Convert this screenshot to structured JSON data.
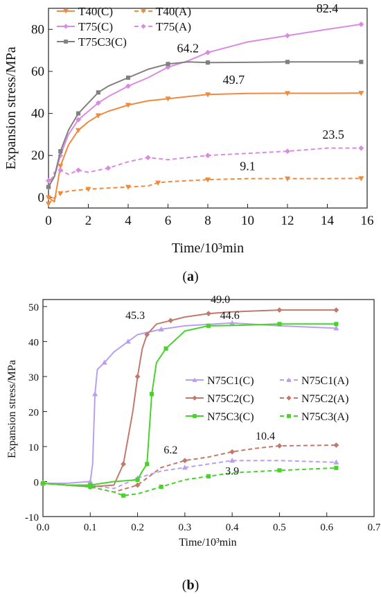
{
  "chart_data": [
    {
      "type": "line",
      "panel_label": "(a)",
      "xlabel": "Time/10³min",
      "ylabel": "Expansion stress/MPa",
      "xlim": [
        0,
        16
      ],
      "ylim": [
        -5,
        90
      ],
      "x_ticks": [
        0,
        2,
        4,
        6,
        8,
        10,
        12,
        14,
        16
      ],
      "y_ticks": [
        0,
        20,
        40,
        60,
        80
      ],
      "legend_position": "top-left",
      "series": [
        {
          "name": "T40(C)",
          "color": "#f08a3c",
          "dash": "solid",
          "marker": "triangle-down",
          "x": [
            0,
            0.3,
            0.6,
            1,
            1.5,
            2,
            2.5,
            3,
            4,
            5,
            6,
            7,
            8,
            10,
            12,
            14,
            15.7
          ],
          "y": [
            0,
            -2,
            15,
            25,
            32,
            36,
            39,
            41,
            44,
            46,
            47,
            48,
            49,
            49.5,
            49.6,
            49.6,
            49.7
          ]
        },
        {
          "name": "T40(A)",
          "color": "#f08a3c",
          "dash": "dash",
          "marker": "triangle-down",
          "x": [
            0,
            0.3,
            0.6,
            1,
            2,
            3,
            4,
            5,
            5.5,
            6,
            8,
            10,
            12,
            14,
            15.7
          ],
          "y": [
            -3,
            0,
            2,
            3,
            4,
            4.5,
            5,
            5.5,
            7,
            7.5,
            8.5,
            9,
            9,
            9,
            9.1
          ]
        },
        {
          "name": "T75(C)",
          "color": "#d98be0",
          "dash": "solid",
          "marker": "diamond",
          "x": [
            0,
            0.3,
            0.6,
            1,
            1.5,
            2,
            2.5,
            3,
            4,
            5,
            6,
            7,
            8,
            10,
            12,
            14,
            15.7
          ],
          "y": [
            8,
            10,
            20,
            30,
            37,
            41,
            45,
            48,
            53,
            57,
            62,
            65,
            69,
            74,
            77,
            80,
            82.4
          ]
        },
        {
          "name": "T75(A)",
          "color": "#d98be0",
          "dash": "dash",
          "marker": "diamond",
          "x": [
            0,
            0.3,
            0.6,
            1,
            1.5,
            2,
            3,
            4,
            5,
            6,
            8,
            10,
            12,
            14,
            15.7
          ],
          "y": [
            5,
            12,
            13,
            11,
            13,
            12,
            14,
            17,
            19,
            18,
            20,
            21,
            22,
            23.5,
            23.5
          ]
        },
        {
          "name": "T75C3(C)",
          "color": "#808080",
          "dash": "solid",
          "marker": "square",
          "x": [
            0,
            0.3,
            0.6,
            1,
            1.5,
            2,
            2.5,
            3,
            4,
            5,
            6,
            7,
            8,
            10,
            12,
            14,
            15.7
          ],
          "y": [
            5,
            10,
            22,
            32,
            40,
            45,
            50,
            53,
            57,
            61,
            63.5,
            64.5,
            64.2,
            64.3,
            64.5,
            64.5,
            64.5
          ]
        }
      ],
      "annotations": [
        {
          "text": "82.4",
          "x": 14.0,
          "y": 88
        },
        {
          "text": "64.2",
          "x": 7.0,
          "y": 69
        },
        {
          "text": "49.7",
          "x": 9.3,
          "y": 54
        },
        {
          "text": "23.5",
          "x": 14.3,
          "y": 28
        },
        {
          "text": "9.1",
          "x": 10.0,
          "y": 13
        }
      ]
    },
    {
      "type": "line",
      "panel_label": "(b)",
      "xlabel": "Time/10³min",
      "ylabel": "Expansion stress/MPa",
      "xlim": [
        0.0,
        0.7
      ],
      "ylim": [
        -10,
        52
      ],
      "x_ticks": [
        "0.0",
        "0.1",
        "0.2",
        "0.3",
        "0.4",
        "0.5",
        "0.6",
        "0.7"
      ],
      "y_ticks": [
        -10,
        0,
        10,
        20,
        30,
        40,
        50
      ],
      "legend_position": "center-right",
      "series": [
        {
          "name": "N75C1(C)",
          "color": "#b9a0ee",
          "dash": "solid",
          "marker": "triangle-up",
          "x": [
            0,
            0.05,
            0.1,
            0.105,
            0.11,
            0.115,
            0.13,
            0.15,
            0.18,
            0.2,
            0.25,
            0.3,
            0.4,
            0.5,
            0.62
          ],
          "y": [
            -0.5,
            -0.5,
            0,
            5,
            25,
            32,
            34,
            37,
            40,
            42,
            43.5,
            44.5,
            45.3,
            44.5,
            43.8
          ]
        },
        {
          "name": "N75C1(A)",
          "color": "#b9a0ee",
          "dash": "dash",
          "marker": "triangle-up",
          "x": [
            0,
            0.05,
            0.1,
            0.15,
            0.2,
            0.25,
            0.3,
            0.35,
            0.4,
            0.5,
            0.62
          ],
          "y": [
            -0.5,
            -1,
            -1,
            -2,
            1,
            3,
            4,
            5,
            6,
            6,
            5.5
          ]
        },
        {
          "name": "N75C2(C)",
          "color": "#c0796a",
          "dash": "solid",
          "marker": "diamond",
          "x": [
            0,
            0.05,
            0.1,
            0.15,
            0.17,
            0.19,
            0.2,
            0.21,
            0.22,
            0.24,
            0.27,
            0.3,
            0.35,
            0.4,
            0.5,
            0.62
          ],
          "y": [
            -0.5,
            -1,
            -1.5,
            -1,
            5,
            20,
            30,
            38,
            42,
            45,
            46,
            47,
            48,
            48.5,
            49,
            49
          ]
        },
        {
          "name": "N75C2(A)",
          "color": "#c0796a",
          "dash": "dash",
          "marker": "diamond",
          "x": [
            0,
            0.05,
            0.1,
            0.15,
            0.2,
            0.25,
            0.3,
            0.35,
            0.4,
            0.45,
            0.5,
            0.62
          ],
          "y": [
            -0.5,
            -1,
            -1.5,
            -3,
            -1,
            4,
            6,
            7,
            8.5,
            9.5,
            10.2,
            10.4
          ]
        },
        {
          "name": "N75C3(C)",
          "color": "#47d32a",
          "dash": "solid",
          "marker": "square",
          "x": [
            0,
            0.05,
            0.1,
            0.15,
            0.2,
            0.21,
            0.22,
            0.225,
            0.23,
            0.24,
            0.26,
            0.3,
            0.35,
            0.4,
            0.5,
            0.62
          ],
          "y": [
            -0.5,
            -1,
            -1,
            0,
            0.5,
            3,
            5,
            15,
            25,
            34,
            38,
            43,
            44.5,
            44.6,
            45,
            45
          ]
        },
        {
          "name": "N75C3(A)",
          "color": "#47d32a",
          "dash": "dash",
          "marker": "square",
          "x": [
            0,
            0.05,
            0.1,
            0.15,
            0.17,
            0.2,
            0.25,
            0.3,
            0.35,
            0.4,
            0.5,
            0.62
          ],
          "y": [
            -0.5,
            -1,
            -1.5,
            -3,
            -4,
            -3.5,
            -1.5,
            0.5,
            1.5,
            2.5,
            3.2,
            3.9
          ]
        }
      ],
      "annotations": [
        {
          "text": "49.0",
          "x": 0.375,
          "y": 51
        },
        {
          "text": "45.3",
          "x": 0.195,
          "y": 46.5
        },
        {
          "text": "44.6",
          "x": 0.395,
          "y": 46.5
        },
        {
          "text": "10.4",
          "x": 0.47,
          "y": 12
        },
        {
          "text": "6.2",
          "x": 0.27,
          "y": 8
        },
        {
          "text": "3.9",
          "x": 0.4,
          "y": 2
        }
      ]
    }
  ]
}
